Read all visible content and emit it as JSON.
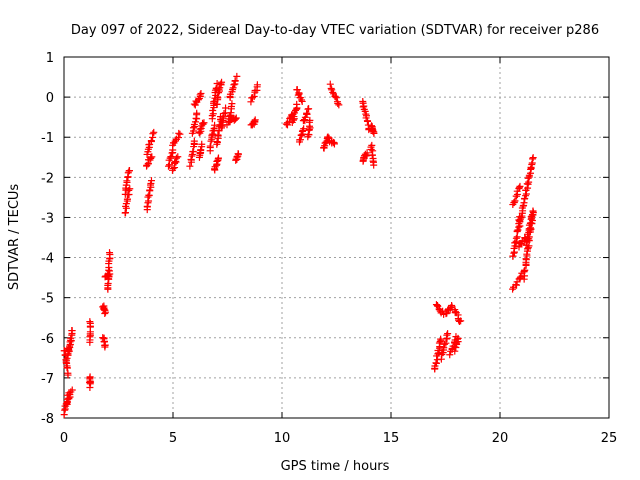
{
  "chart_data": {
    "type": "scatter",
    "title": "Day 097 of 2022, Sidereal Day-to-day VTEC variation (SDTVAR) for receiver p286",
    "xlabel": "GPS time / hours",
    "ylabel": "SDTVAR / TECUs",
    "xlim": [
      0,
      25
    ],
    "ylim": [
      -8,
      1
    ],
    "x_ticks": [
      0,
      5,
      10,
      15,
      20,
      25
    ],
    "x_tick_labels": [
      "0",
      "5",
      "10",
      "15",
      "20",
      "25"
    ],
    "y_ticks": [
      1,
      0,
      -1,
      -2,
      -3,
      -4,
      -5,
      -6,
      -7,
      -8
    ],
    "y_tick_labels": [
      "1",
      "0",
      "-1",
      "-2",
      "-3",
      "-4",
      "-5",
      "-6",
      "-7",
      "-8"
    ],
    "grid": true,
    "marker": "plus",
    "color": "#ff0000",
    "series": [
      {
        "name": "SDTVAR",
        "segments": [
          {
            "x0": 0.0,
            "y0": -7.9,
            "x1": 0.2,
            "y1": -7.4
          },
          {
            "x0": 0.1,
            "y0": -7.7,
            "x1": 0.35,
            "y1": -7.3
          },
          {
            "x0": 0.0,
            "y0": -6.3,
            "x1": 0.2,
            "y1": -6.9
          },
          {
            "x0": 0.1,
            "y0": -6.6,
            "x1": 0.3,
            "y1": -6.1
          },
          {
            "x0": 0.2,
            "y0": -6.4,
            "x1": 0.4,
            "y1": -5.8
          },
          {
            "x0": 1.2,
            "y0": -7.0,
            "x1": 1.2,
            "y1": -7.2
          },
          {
            "x0": 1.2,
            "y0": -5.6,
            "x1": 1.2,
            "y1": -6.1
          },
          {
            "x0": 1.8,
            "y0": -6.0,
            "x1": 1.9,
            "y1": -6.2
          },
          {
            "x0": 1.8,
            "y0": -5.2,
            "x1": 1.9,
            "y1": -5.4
          },
          {
            "x0": 1.9,
            "y0": -4.5,
            "x1": 2.1,
            "y1": -4.4
          },
          {
            "x0": 2.0,
            "y0": -4.8,
            "x1": 2.1,
            "y1": -3.9
          },
          {
            "x0": 2.8,
            "y0": -2.9,
            "x1": 3.0,
            "y1": -2.3
          },
          {
            "x0": 2.8,
            "y0": -2.4,
            "x1": 3.0,
            "y1": -1.8
          },
          {
            "x0": 3.8,
            "y0": -2.8,
            "x1": 4.0,
            "y1": -2.1
          },
          {
            "x0": 3.8,
            "y0": -1.7,
            "x1": 4.0,
            "y1": -1.5
          },
          {
            "x0": 3.8,
            "y0": -1.4,
            "x1": 4.1,
            "y1": -0.9
          },
          {
            "x0": 4.8,
            "y0": -1.7,
            "x1": 5.0,
            "y1": -1.3
          },
          {
            "x0": 5.0,
            "y0": -1.8,
            "x1": 5.2,
            "y1": -1.5
          },
          {
            "x0": 5.0,
            "y0": -1.2,
            "x1": 5.3,
            "y1": -0.9
          },
          {
            "x0": 5.8,
            "y0": -1.7,
            "x1": 6.0,
            "y1": -1.1
          },
          {
            "x0": 5.9,
            "y0": -0.9,
            "x1": 6.1,
            "y1": -0.4
          },
          {
            "x0": 6.0,
            "y0": -0.2,
            "x1": 6.3,
            "y1": 0.1
          },
          {
            "x0": 6.2,
            "y0": -1.5,
            "x1": 6.3,
            "y1": -1.2
          },
          {
            "x0": 6.2,
            "y0": -0.9,
            "x1": 6.4,
            "y1": -0.6
          },
          {
            "x0": 6.7,
            "y0": -1.3,
            "x1": 6.9,
            "y1": -0.7
          },
          {
            "x0": 6.8,
            "y0": -0.5,
            "x1": 7.0,
            "y1": 0.3
          },
          {
            "x0": 6.9,
            "y0": -1.8,
            "x1": 7.1,
            "y1": -1.5
          },
          {
            "x0": 7.0,
            "y0": -0.2,
            "x1": 7.2,
            "y1": 0.4
          },
          {
            "x0": 7.0,
            "y0": -1.2,
            "x1": 7.2,
            "y1": -0.5
          },
          {
            "x0": 7.2,
            "y0": -0.8,
            "x1": 7.4,
            "y1": -0.3
          },
          {
            "x0": 7.5,
            "y0": -0.7,
            "x1": 7.7,
            "y1": -0.2
          },
          {
            "x0": 7.6,
            "y0": 0.0,
            "x1": 7.9,
            "y1": 0.5
          },
          {
            "x0": 7.6,
            "y0": -0.6,
            "x1": 7.9,
            "y1": -0.5
          },
          {
            "x0": 7.9,
            "y0": -1.6,
            "x1": 8.0,
            "y1": -1.4
          },
          {
            "x0": 8.6,
            "y0": -0.7,
            "x1": 8.8,
            "y1": -0.6
          },
          {
            "x0": 8.6,
            "y0": -0.1,
            "x1": 8.9,
            "y1": 0.3
          },
          {
            "x0": 10.2,
            "y0": -0.7,
            "x1": 10.5,
            "y1": -0.4
          },
          {
            "x0": 10.5,
            "y0": -0.6,
            "x1": 10.7,
            "y1": -0.2
          },
          {
            "x0": 10.7,
            "y0": 0.2,
            "x1": 10.9,
            "y1": -0.1
          },
          {
            "x0": 10.8,
            "y0": -1.1,
            "x1": 11.0,
            "y1": -0.8
          },
          {
            "x0": 11.0,
            "y0": -0.6,
            "x1": 11.2,
            "y1": -0.3
          },
          {
            "x0": 11.2,
            "y0": -1.0,
            "x1": 11.3,
            "y1": -0.6
          },
          {
            "x0": 11.9,
            "y0": -1.3,
            "x1": 12.1,
            "y1": -1.0
          },
          {
            "x0": 12.1,
            "y0": -1.0,
            "x1": 12.4,
            "y1": -1.2
          },
          {
            "x0": 12.2,
            "y0": 0.3,
            "x1": 12.6,
            "y1": -0.2
          },
          {
            "x0": 13.7,
            "y0": -1.6,
            "x1": 13.9,
            "y1": -1.4
          },
          {
            "x0": 13.7,
            "y0": -0.1,
            "x1": 14.0,
            "y1": -0.8
          },
          {
            "x0": 14.1,
            "y0": -1.2,
            "x1": 14.2,
            "y1": -1.7
          },
          {
            "x0": 14.1,
            "y0": -0.7,
            "x1": 14.2,
            "y1": -0.9
          },
          {
            "x0": 17.0,
            "y0": -6.8,
            "x1": 17.3,
            "y1": -6.0
          },
          {
            "x0": 17.1,
            "y0": -5.2,
            "x1": 17.4,
            "y1": -5.4
          },
          {
            "x0": 17.3,
            "y0": -6.5,
            "x1": 17.6,
            "y1": -5.9
          },
          {
            "x0": 17.5,
            "y0": -5.4,
            "x1": 17.8,
            "y1": -5.2
          },
          {
            "x0": 17.7,
            "y0": -6.4,
            "x1": 18.0,
            "y1": -6.0
          },
          {
            "x0": 17.9,
            "y0": -6.3,
            "x1": 18.1,
            "y1": -6.0
          },
          {
            "x0": 17.9,
            "y0": -5.3,
            "x1": 18.2,
            "y1": -5.6
          },
          {
            "x0": 20.6,
            "y0": -4.8,
            "x1": 21.0,
            "y1": -4.4
          },
          {
            "x0": 20.6,
            "y0": -4.0,
            "x1": 20.9,
            "y1": -3.0
          },
          {
            "x0": 20.6,
            "y0": -2.7,
            "x1": 20.9,
            "y1": -2.2
          },
          {
            "x0": 20.9,
            "y0": -3.7,
            "x1": 21.2,
            "y1": -3.5
          },
          {
            "x0": 21.1,
            "y0": -4.5,
            "x1": 21.5,
            "y1": -2.9
          },
          {
            "x0": 20.9,
            "y0": -3.2,
            "x1": 21.5,
            "y1": -1.5
          },
          {
            "x0": 21.2,
            "y0": -3.7,
            "x1": 21.5,
            "y1": -2.8
          }
        ]
      }
    ]
  }
}
